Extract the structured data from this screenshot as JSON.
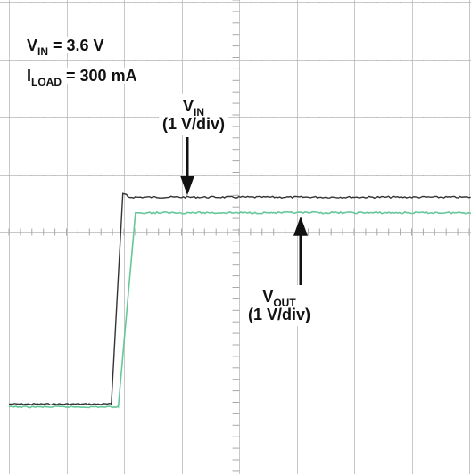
{
  "chart_data": {
    "type": "line",
    "grid": true,
    "divisions": {
      "x": 8,
      "y": 8
    },
    "volts_per_div": 1,
    "conditions": [
      {
        "main": "V",
        "sub": "IN",
        "value": " = 3.6 V"
      },
      {
        "main": "I",
        "sub": "LOAD",
        "value": " = 300 mA"
      }
    ],
    "series": [
      {
        "label_main": "V",
        "label_sub": "IN",
        "scale": "(1 V/div)",
        "color": "#333333",
        "baseline_div": -3.0,
        "final_div": 0.6,
        "step_start_div": 1.78,
        "step_end_div": 1.98
      },
      {
        "label_main": "V",
        "label_sub": "OUT",
        "scale": "(1 V/div)",
        "color": "#66c79a",
        "baseline_div": -3.05,
        "final_div": 0.33,
        "step_start_div": 1.9,
        "step_end_div": 2.2
      }
    ]
  }
}
